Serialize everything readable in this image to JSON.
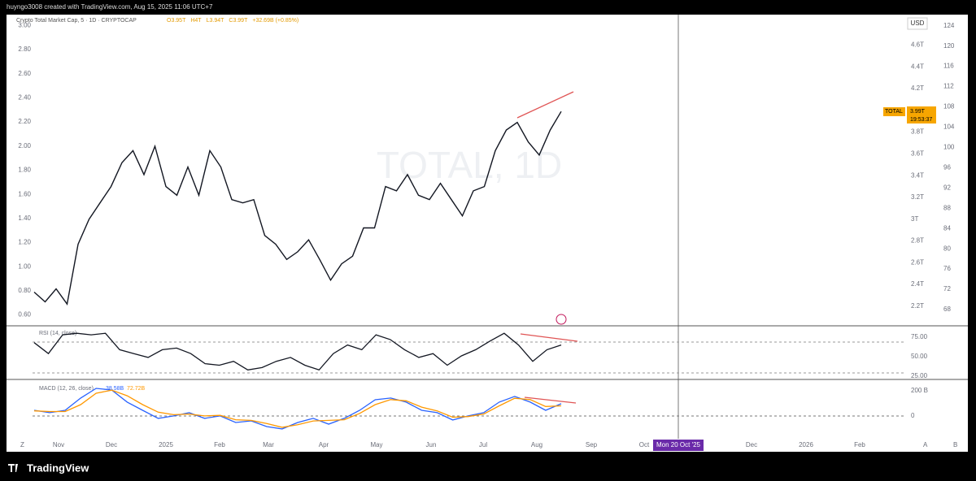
{
  "header": {
    "caption": "huyngo3008 created with TradingView.com, Aug 15, 2025 11:06 UTC+7"
  },
  "chart_data": {
    "type": "line",
    "symbol": "Crypto Total Market Cap, 5 · 1D · CRYPTOCAP",
    "ohlc": [
      "O3.95T",
      "H4T",
      "L3.94T",
      "C3.99T",
      "+32.69B (+0.85%)"
    ],
    "watermark": "TOTAL, 1D",
    "currency": "USD",
    "price_tag": {
      "name": "TOTAL",
      "value": "3.99T",
      "countdown": "19:53:37"
    },
    "series": [
      {
        "name": "TOTAL",
        "color": "#131722",
        "values": [
          2.33,
          2.24,
          2.36,
          2.22,
          2.77,
          3.0,
          3.15,
          3.3,
          3.52,
          3.63,
          3.41,
          3.67,
          3.3,
          3.22,
          3.48,
          3.22,
          3.63,
          3.48,
          3.18,
          3.15,
          3.18,
          2.85,
          2.77,
          2.63,
          2.7,
          2.81,
          2.63,
          2.44,
          2.59,
          2.66,
          2.92,
          2.92,
          3.3,
          3.26,
          3.41,
          3.22,
          3.18,
          3.33,
          3.18,
          3.03,
          3.26,
          3.3,
          3.63,
          3.82,
          3.89,
          3.71,
          3.59,
          3.82,
          3.99
        ]
      }
    ],
    "ylim": [
      2.02,
      4.88
    ],
    "yticks": [
      {
        "value": 4.6,
        "label": "4.6T"
      },
      {
        "value": 4.4,
        "label": "4.4T"
      },
      {
        "value": 4.2,
        "label": "4.2T"
      },
      {
        "value": 3.8,
        "label": "3.8T"
      },
      {
        "value": 3.6,
        "label": "3.6T"
      },
      {
        "value": 3.4,
        "label": "3.4T"
      },
      {
        "value": 3.2,
        "label": "3.2T"
      },
      {
        "value": 3,
        "label": "3T"
      },
      {
        "value": 2.8,
        "label": "2.8T"
      },
      {
        "value": 2.6,
        "label": "2.6T"
      },
      {
        "value": 2.4,
        "label": "2.4T"
      },
      {
        "value": 2.2,
        "label": "2.2T"
      }
    ],
    "y2lim": [
      64.8,
      126.2
    ],
    "y2ticks": [
      124,
      120,
      116,
      112,
      108,
      104,
      100,
      96,
      92,
      88,
      84,
      80,
      76,
      72,
      68
    ],
    "y3lim": [
      0.51,
      3.09
    ],
    "y3ticks": [
      {
        "value": 3,
        "label": "3.00"
      },
      {
        "value": 2.8,
        "label": "2.80"
      },
      {
        "value": 2.6,
        "label": "2.60"
      },
      {
        "value": 2.4,
        "label": "2.40"
      },
      {
        "value": 2.2,
        "label": "2.20"
      },
      {
        "value": 2,
        "label": "2.00"
      },
      {
        "value": 1.8,
        "label": "1.80"
      },
      {
        "value": 1.6,
        "label": "1.60"
      },
      {
        "value": 1.4,
        "label": "1.40"
      },
      {
        "value": 1.2,
        "label": "1.20"
      },
      {
        "value": 1,
        "label": "1.00"
      },
      {
        "value": 0.8,
        "label": "0.80"
      },
      {
        "value": 0.6,
        "label": "0.60"
      }
    ],
    "rsi": {
      "label": "RSI (14, close)",
      "color": "#131722",
      "values": [
        68,
        54,
        78,
        80,
        78,
        80,
        59,
        54,
        49,
        59,
        61,
        54,
        41,
        39,
        44,
        33,
        36,
        44,
        49,
        39,
        33,
        54,
        65,
        59,
        78,
        72,
        59,
        49,
        54,
        39,
        51,
        59,
        70,
        80,
        65,
        44,
        59,
        65
      ],
      "ylim": [
        20.8,
        89.6
      ],
      "yticks": [
        {
          "value": 75,
          "label": "75.00"
        },
        {
          "value": 50,
          "label": "50.00"
        },
        {
          "value": 25,
          "label": "25.00"
        }
      ]
    },
    "macd": {
      "label": "MACD (12, 26, close)",
      "series": [
        {
          "name": "38.58B",
          "color": "#2962ff",
          "values": [
            45,
            26,
            45,
            142,
            219,
            206,
            110,
            45,
            -19,
            0,
            26,
            -19,
            0,
            -52,
            -39,
            -84,
            -103,
            -52,
            -19,
            -65,
            -19,
            45,
            129,
            142,
            110,
            45,
            26,
            -32,
            0,
            26,
            110,
            155,
            110,
            45,
            97
          ]
        },
        {
          "name": "72.72B",
          "color": "#ff9800",
          "values": [
            40,
            35,
            35,
            90,
            180,
            205,
            160,
            90,
            30,
            10,
            15,
            0,
            5,
            -30,
            -35,
            -60,
            -90,
            -70,
            -40,
            -35,
            -30,
            20,
            90,
            130,
            120,
            70,
            40,
            -10,
            -5,
            15,
            80,
            140,
            130,
            75,
            80
          ]
        }
      ],
      "ylim": [
        -181,
        290
      ],
      "yticks": [
        {
          "value": 200,
          "label": "200 B"
        },
        0
      ]
    },
    "time_labels": [
      "Nov",
      "Dec",
      "2025",
      "Feb",
      "Mar",
      "Apr",
      "May",
      "Jun",
      "Jul",
      "Aug",
      "Sep",
      "Oct",
      "Dec",
      "2026",
      "Feb"
    ],
    "crosshair": "Mon 20 Oct '25",
    "buttons": [
      "Z",
      "A",
      "B"
    ]
  },
  "footer": {
    "brand": "TradingView"
  }
}
